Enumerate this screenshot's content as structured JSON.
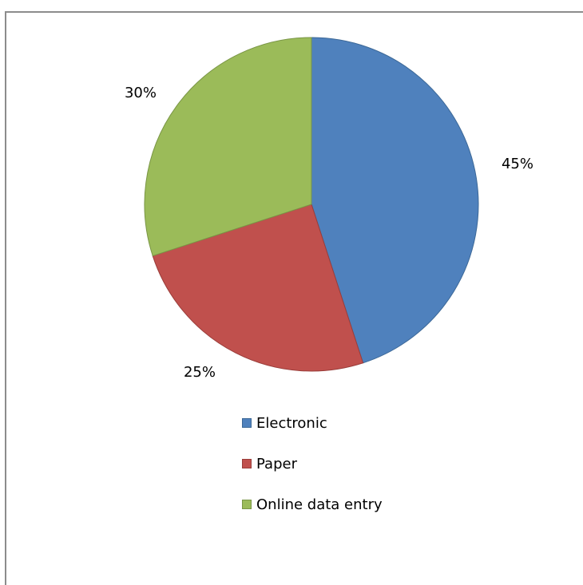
{
  "chart_data": {
    "type": "pie",
    "series": [
      {
        "name": "Electronic",
        "value": 45,
        "label": "45%",
        "color": "#4F81BD",
        "stroke": "#3C6897"
      },
      {
        "name": "Paper",
        "value": 25,
        "label": "25%",
        "color": "#C0504D",
        "stroke": "#9A3D3A"
      },
      {
        "name": "Online data entry",
        "value": 30,
        "label": "30%",
        "color": "#9BBB59",
        "stroke": "#7A9646"
      }
    ],
    "legend_placement": "bottom"
  }
}
